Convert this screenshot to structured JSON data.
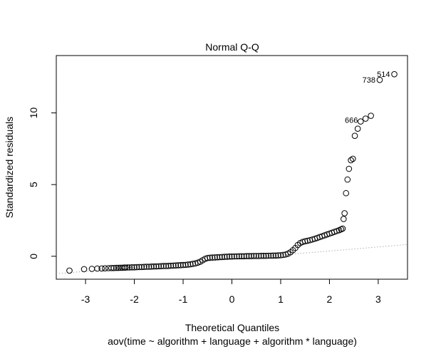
{
  "chart_data": {
    "type": "scatter",
    "title": "Normal Q-Q",
    "xlabel": "Theoretical Quantiles",
    "subtitle": "aov(time ~ algorithm + language + algorithm * language)",
    "ylabel": "Standardized residuals",
    "xlim": [
      -3.6,
      3.6
    ],
    "ylim": [
      -1.6,
      14.0
    ],
    "x_ticks": [
      "-3",
      "-2",
      "-1",
      "0",
      "1",
      "2",
      "3"
    ],
    "y_ticks": [
      "0",
      "5",
      "10"
    ],
    "reference_line": {
      "x": [
        -3.6,
        3.6
      ],
      "y": [
        -1.22,
        0.82
      ],
      "style": "dotted",
      "color": "#888888"
    },
    "labeled_points": [
      {
        "label": "514",
        "x": 3.33,
        "y": 12.7
      },
      {
        "label": "738",
        "x": 3.03,
        "y": 12.3
      },
      {
        "label": "666",
        "x": 2.67,
        "y": 9.5
      }
    ],
    "points": [
      [
        -3.33,
        -1.0
      ],
      [
        -3.03,
        -0.9
      ],
      [
        -2.87,
        -0.88
      ],
      [
        -2.76,
        -0.86
      ],
      [
        -2.67,
        -0.85
      ],
      [
        -2.6,
        -0.84
      ],
      [
        -2.53,
        -0.83
      ],
      [
        -2.47,
        -0.82
      ],
      [
        -2.42,
        -0.82
      ],
      [
        -2.37,
        -0.81
      ],
      [
        -2.33,
        -0.81
      ],
      [
        -2.29,
        -0.8
      ],
      [
        -2.25,
        -0.8
      ],
      [
        -2.21,
        -0.79
      ],
      [
        -2.18,
        -0.79
      ],
      [
        -2.14,
        -0.78
      ],
      [
        -2.1,
        -0.78
      ],
      [
        -2.05,
        -0.77
      ],
      [
        -2.0,
        -0.77
      ],
      [
        -1.95,
        -0.76
      ],
      [
        -1.9,
        -0.75
      ],
      [
        -1.85,
        -0.75
      ],
      [
        -1.8,
        -0.74
      ],
      [
        -1.75,
        -0.73
      ],
      [
        -1.7,
        -0.73
      ],
      [
        -1.65,
        -0.72
      ],
      [
        -1.6,
        -0.71
      ],
      [
        -1.55,
        -0.71
      ],
      [
        -1.5,
        -0.7
      ],
      [
        -1.45,
        -0.69
      ],
      [
        -1.4,
        -0.68
      ],
      [
        -1.35,
        -0.68
      ],
      [
        -1.3,
        -0.67
      ],
      [
        -1.25,
        -0.66
      ],
      [
        -1.2,
        -0.65
      ],
      [
        -1.15,
        -0.64
      ],
      [
        -1.1,
        -0.63
      ],
      [
        -1.05,
        -0.62
      ],
      [
        -1.0,
        -0.61
      ],
      [
        -0.95,
        -0.6
      ],
      [
        -0.9,
        -0.58
      ],
      [
        -0.85,
        -0.56
      ],
      [
        -0.8,
        -0.53
      ],
      [
        -0.75,
        -0.5
      ],
      [
        -0.7,
        -0.45
      ],
      [
        -0.65,
        -0.38
      ],
      [
        -0.6,
        -0.28
      ],
      [
        -0.55,
        -0.18
      ],
      [
        -0.5,
        -0.12
      ],
      [
        -0.45,
        -0.1
      ],
      [
        -0.4,
        -0.09
      ],
      [
        -0.35,
        -0.08
      ],
      [
        -0.3,
        -0.07
      ],
      [
        -0.25,
        -0.06
      ],
      [
        -0.2,
        -0.05
      ],
      [
        -0.15,
        -0.04
      ],
      [
        -0.1,
        -0.03
      ],
      [
        -0.05,
        -0.02
      ],
      [
        0.0,
        -0.02
      ],
      [
        0.05,
        -0.01
      ],
      [
        0.1,
        -0.01
      ],
      [
        0.15,
        0.0
      ],
      [
        0.2,
        0.0
      ],
      [
        0.25,
        0.0
      ],
      [
        0.3,
        0.01
      ],
      [
        0.35,
        0.01
      ],
      [
        0.4,
        0.01
      ],
      [
        0.45,
        0.02
      ],
      [
        0.5,
        0.02
      ],
      [
        0.55,
        0.02
      ],
      [
        0.6,
        0.03
      ],
      [
        0.65,
        0.03
      ],
      [
        0.7,
        0.03
      ],
      [
        0.75,
        0.04
      ],
      [
        0.8,
        0.04
      ],
      [
        0.85,
        0.05
      ],
      [
        0.9,
        0.05
      ],
      [
        0.95,
        0.06
      ],
      [
        1.0,
        0.07
      ],
      [
        1.05,
        0.09
      ],
      [
        1.1,
        0.12
      ],
      [
        1.15,
        0.18
      ],
      [
        1.2,
        0.28
      ],
      [
        1.25,
        0.42
      ],
      [
        1.3,
        0.58
      ],
      [
        1.35,
        0.78
      ],
      [
        1.4,
        0.92
      ],
      [
        1.45,
        1.0
      ],
      [
        1.5,
        1.05
      ],
      [
        1.55,
        1.08
      ],
      [
        1.6,
        1.12
      ],
      [
        1.65,
        1.17
      ],
      [
        1.7,
        1.22
      ],
      [
        1.75,
        1.28
      ],
      [
        1.8,
        1.34
      ],
      [
        1.85,
        1.4
      ],
      [
        1.9,
        1.46
      ],
      [
        1.95,
        1.52
      ],
      [
        2.0,
        1.58
      ],
      [
        2.05,
        1.64
      ],
      [
        2.1,
        1.7
      ],
      [
        2.15,
        1.76
      ],
      [
        2.2,
        1.82
      ],
      [
        2.24,
        1.88
      ],
      [
        2.27,
        1.93
      ],
      [
        2.29,
        2.6
      ],
      [
        2.31,
        3.0
      ],
      [
        2.34,
        4.4
      ],
      [
        2.37,
        5.35
      ],
      [
        2.4,
        6.1
      ],
      [
        2.44,
        6.7
      ],
      [
        2.48,
        6.8
      ],
      [
        2.52,
        8.4
      ],
      [
        2.58,
        8.9
      ],
      [
        2.64,
        9.4
      ],
      [
        2.74,
        9.6
      ],
      [
        2.85,
        9.8
      ],
      [
        3.03,
        12.3
      ],
      [
        3.33,
        12.7
      ]
    ]
  }
}
